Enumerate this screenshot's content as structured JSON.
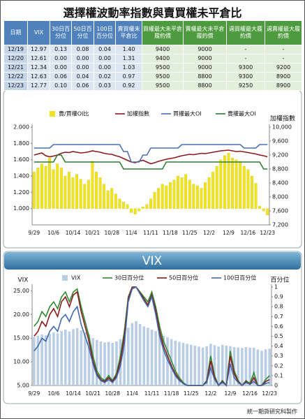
{
  "title": "選擇權波動率指數與賣買權未平倉比",
  "table": {
    "headers": [
      "日期",
      "VIX",
      "30日百分位",
      "50日百分位",
      "100日百分位",
      "賣買權未平倉比",
      "買權最大未平倉履約價",
      "賣權最大未平倉履約價",
      "週買權最大履約價",
      "週賣權最大履約價"
    ],
    "rows": [
      [
        "12/19",
        "12.97",
        "0.13",
        "0.08",
        "0.04",
        "1.40",
        "9400",
        "9000",
        "-",
        "-"
      ],
      [
        "12/20",
        "12.61",
        "0.00",
        "0.00",
        "0.00",
        "1.31",
        "9400",
        "9000",
        "-",
        "-"
      ],
      [
        "12/21",
        "12.34",
        "0.00",
        "0.00",
        "0.00",
        "1.03",
        "9500",
        "9000",
        "9300",
        "9200"
      ],
      [
        "12/22",
        "12.63",
        "0.06",
        "0.04",
        "0.02",
        "0.97",
        "9500",
        "8800",
        "9300",
        "8900"
      ],
      [
        "12/23",
        "12.77",
        "0.10",
        "0.06",
        "0.03",
        "0.92",
        "9500",
        "8800",
        "9250",
        "8900"
      ]
    ]
  },
  "chart_data": [
    {
      "type": "combo",
      "y2label": "加權指數",
      "grid": false,
      "categories": [
        "9/29",
        null,
        null,
        null,
        null,
        "10/6",
        null,
        null,
        null,
        null,
        "10/14",
        null,
        null,
        null,
        null,
        "10/21",
        null,
        null,
        null,
        null,
        "10/28",
        null,
        null,
        null,
        null,
        "11/4",
        null,
        null,
        null,
        null,
        "11/11",
        null,
        null,
        null,
        null,
        "11/18",
        null,
        null,
        null,
        null,
        "11/25",
        null,
        null,
        null,
        null,
        "12/2",
        null,
        null,
        null,
        null,
        "12/9",
        null,
        null,
        null,
        null,
        "12/16",
        null,
        null,
        null,
        null,
        "12/23"
      ],
      "ylim": [
        0.8,
        2.0
      ],
      "yticks": [
        {
          "value": 1.0,
          "label": "1.000"
        },
        {
          "value": 1.2,
          "label": "1.200"
        },
        {
          "value": 1.4,
          "label": "1.400"
        },
        {
          "value": 1.6,
          "label": "1.600"
        },
        {
          "value": 1.8,
          "label": "1.800"
        },
        {
          "value": 2.0,
          "label": "2.000"
        }
      ],
      "y2lim": [
        7200,
        10000
      ],
      "y2ticks": [
        {
          "value": 7200,
          "label": "7,200"
        },
        {
          "value": 7600,
          "label": "7,600"
        },
        {
          "value": 8000,
          "label": "8,000"
        },
        {
          "value": 8400,
          "label": "8,400"
        },
        {
          "value": 8800,
          "label": "8,800"
        },
        {
          "value": 9200,
          "label": "9,200"
        },
        {
          "value": 9600,
          "label": "9,600"
        },
        {
          "value": 10000,
          "label": "10,000"
        }
      ],
      "series": [
        {
          "name": "賣/買權OI比",
          "type": "bar",
          "color": "#f2e41c",
          "values": [
            1.45,
            1.5,
            1.55,
            1.52,
            1.62,
            1.48,
            1.55,
            1.5,
            1.4,
            1.45,
            1.38,
            1.42,
            1.36,
            1.3,
            1.35,
            1.58,
            1.45,
            1.38,
            1.3,
            1.22,
            1.25,
            1.18,
            1.12,
            1.08,
            1.05,
            0.95,
            0.93,
            0.97,
            1.02,
            1.05,
            1.12,
            1.2,
            1.25,
            1.3,
            1.28,
            1.32,
            1.35,
            1.4,
            1.38,
            1.42,
            1.35,
            1.3,
            1.28,
            1.25,
            1.32,
            1.38,
            1.45,
            1.52,
            1.6,
            1.65,
            1.68,
            1.62,
            1.6,
            1.58,
            1.52,
            1.48,
            1.4,
            1.31,
            1.03,
            0.97,
            0.92
          ]
        },
        {
          "name": "加權指數",
          "type": "line",
          "axis": "y2",
          "color": "#8b1a1a",
          "values": [
            9200,
            9230,
            9260,
            9180,
            9150,
            9170,
            9200,
            9250,
            9280,
            9270,
            9300,
            9280,
            9260,
            9270,
            9290,
            9320,
            9300,
            9280,
            9250,
            9230,
            9220,
            9180,
            9150,
            9100,
            9050,
            9000,
            8980,
            9020,
            9050,
            9000,
            8950,
            8980,
            9020,
            9050,
            9080,
            9100,
            9120,
            9150,
            9180,
            9200,
            9220,
            9210,
            9230,
            9250,
            9240,
            9260,
            9280,
            9300,
            9320,
            9330,
            9340,
            9320,
            9300,
            9310,
            9290,
            9270,
            9250,
            9230,
            9200,
            9180,
            9150
          ]
        },
        {
          "name": "買權最大OI",
          "type": "line",
          "axis": "y2",
          "color": "#4a6fb5",
          "values": [
            9400,
            9400,
            9400,
            9400,
            9400,
            9500,
            9500,
            9500,
            9500,
            9500,
            9500,
            9500,
            9500,
            9500,
            9500,
            9500,
            9500,
            9500,
            9500,
            9500,
            9500,
            9500,
            9500,
            9300,
            9300,
            9000,
            9000,
            9000,
            9200,
            9200,
            9400,
            9400,
            9400,
            9400,
            9400,
            9400,
            9400,
            9400,
            9500,
            9500,
            9500,
            9500,
            9500,
            9500,
            9500,
            9500,
            9500,
            9500,
            9500,
            9500,
            9500,
            9500,
            9500,
            9500,
            9400,
            9400,
            9400,
            9400,
            9500,
            9500,
            9500
          ]
        },
        {
          "name": "賣權最大OI",
          "type": "line",
          "axis": "y2",
          "color": "#2e7d32",
          "values": [
            9000,
            9000,
            9000,
            9000,
            9000,
            9000,
            9200,
            9200,
            9000,
            9000,
            9000,
            9000,
            9000,
            9000,
            9000,
            9000,
            9000,
            9000,
            9000,
            9000,
            9000,
            9000,
            9000,
            8800,
            8800,
            8800,
            8800,
            8800,
            8800,
            8800,
            8800,
            8800,
            8800,
            8800,
            9000,
            9000,
            9000,
            9000,
            9000,
            9000,
            9000,
            9000,
            9000,
            9000,
            9000,
            9000,
            9000,
            9000,
            9000,
            9000,
            9000,
            9000,
            9000,
            9000,
            9000,
            9000,
            9000,
            9000,
            9000,
            8800,
            8800
          ]
        }
      ]
    },
    {
      "type": "combo",
      "title": "VIX",
      "ylabel": "VIX",
      "y2label": "百分位",
      "grid": false,
      "categories": [
        "9/29",
        null,
        null,
        null,
        null,
        "10/6",
        null,
        null,
        null,
        null,
        "10/14",
        null,
        null,
        null,
        null,
        "10/21",
        null,
        null,
        null,
        null,
        "10/28",
        null,
        null,
        null,
        null,
        "11/4",
        null,
        null,
        null,
        null,
        "11/11",
        null,
        null,
        null,
        null,
        "11/18",
        null,
        null,
        null,
        null,
        "11/25",
        null,
        null,
        null,
        null,
        "12/2",
        null,
        null,
        null,
        null,
        "12/9",
        null,
        null,
        null,
        null,
        "12/16",
        null,
        null,
        null,
        null,
        "12/23"
      ],
      "ylim": [
        5,
        25.8
      ],
      "yticks": [
        {
          "value": 5,
          "label": "5.00"
        },
        {
          "value": 10,
          "label": "10.00"
        },
        {
          "value": 15,
          "label": "15.00"
        },
        {
          "value": 20,
          "label": "20.00"
        },
        {
          "value": 25,
          "label": "25.00"
        }
      ],
      "y2lim": [
        0,
        1
      ],
      "y2ticks": [
        0,
        0.1,
        0.2,
        0.3,
        0.4,
        0.5,
        0.6,
        0.7,
        0.8,
        0.9,
        1
      ],
      "series": [
        {
          "name": "VIX",
          "type": "bar",
          "color": "#b9cde5",
          "values": [
            15.2,
            15.5,
            15.8,
            15.6,
            15.9,
            16.2,
            16.0,
            16.5,
            16.8,
            16.4,
            16.9,
            17.1,
            16.6,
            16.2,
            15.8,
            15.0,
            14.6,
            14.3,
            14.1,
            14.2,
            14.0,
            14.3,
            14.8,
            15.6,
            17.2,
            18.2,
            18.6,
            18.0,
            17.5,
            17.2,
            16.8,
            16.5,
            16.0,
            15.5,
            15.2,
            14.8,
            14.5,
            14.2,
            14.0,
            13.8,
            13.6,
            13.4,
            13.2,
            13.0,
            13.3,
            13.8,
            13.5,
            13.2,
            13.6,
            13.4,
            13.3,
            13.1,
            13.0,
            12.9,
            13.1,
            13.0,
            12.97,
            12.61,
            12.34,
            12.63,
            12.77
          ]
        },
        {
          "name": "30日百分位",
          "type": "line",
          "axis": "y2",
          "color": "#2e8b2e",
          "values": [
            0.6,
            0.65,
            0.75,
            0.7,
            0.8,
            0.85,
            0.78,
            0.9,
            0.95,
            0.85,
            0.95,
            0.98,
            0.8,
            0.65,
            0.5,
            0.3,
            0.15,
            0.08,
            0.05,
            0.1,
            0.05,
            0.12,
            0.3,
            0.55,
            0.9,
            1,
            1,
            0.95,
            0.9,
            0.85,
            0.95,
            0.8,
            0.6,
            0.45,
            0.35,
            0.25,
            0.15,
            0.08,
            0.03,
            0,
            0,
            0,
            0,
            0,
            0.05,
            0.3,
            0.1,
            0,
            0.05,
            0,
            0.35,
            0.15,
            0.05,
            0,
            0.05,
            0.02,
            0.13,
            0,
            0,
            0.06,
            0.1
          ]
        },
        {
          "name": "50日百分位",
          "type": "line",
          "axis": "y2",
          "color": "#8b1a1a",
          "values": [
            0.5,
            0.55,
            0.65,
            0.6,
            0.72,
            0.78,
            0.7,
            0.85,
            0.9,
            0.8,
            0.92,
            0.95,
            0.75,
            0.6,
            0.45,
            0.25,
            0.12,
            0.06,
            0.04,
            0.08,
            0.04,
            0.1,
            0.25,
            0.5,
            0.88,
            1,
            1,
            0.94,
            0.88,
            0.82,
            0.92,
            0.76,
            0.55,
            0.4,
            0.3,
            0.2,
            0.12,
            0.06,
            0.02,
            0,
            0,
            0,
            0,
            0,
            0.04,
            0.25,
            0.08,
            0,
            0.04,
            0,
            0.3,
            0.12,
            0.04,
            0,
            0.04,
            0.01,
            0.08,
            0,
            0,
            0.04,
            0.06
          ]
        },
        {
          "name": "100日百分位",
          "type": "line",
          "axis": "y2",
          "color": "#4169b0",
          "values": [
            0.35,
            0.4,
            0.48,
            0.45,
            0.55,
            0.6,
            0.55,
            0.68,
            0.72,
            0.65,
            0.75,
            0.8,
            0.62,
            0.5,
            0.38,
            0.22,
            0.1,
            0.05,
            0.03,
            0.06,
            0.03,
            0.08,
            0.2,
            0.42,
            0.85,
            0.98,
            1,
            0.93,
            0.86,
            0.8,
            0.9,
            0.72,
            0.5,
            0.36,
            0.26,
            0.18,
            0.1,
            0.05,
            0.02,
            0,
            0,
            0,
            0,
            0,
            0.03,
            0.18,
            0.06,
            0,
            0.03,
            0,
            0.22,
            0.08,
            0.03,
            0,
            0.03,
            0.01,
            0.04,
            0,
            0,
            0.02,
            0.03
          ]
        }
      ]
    }
  ],
  "footer": "統一期貨研究科製作"
}
